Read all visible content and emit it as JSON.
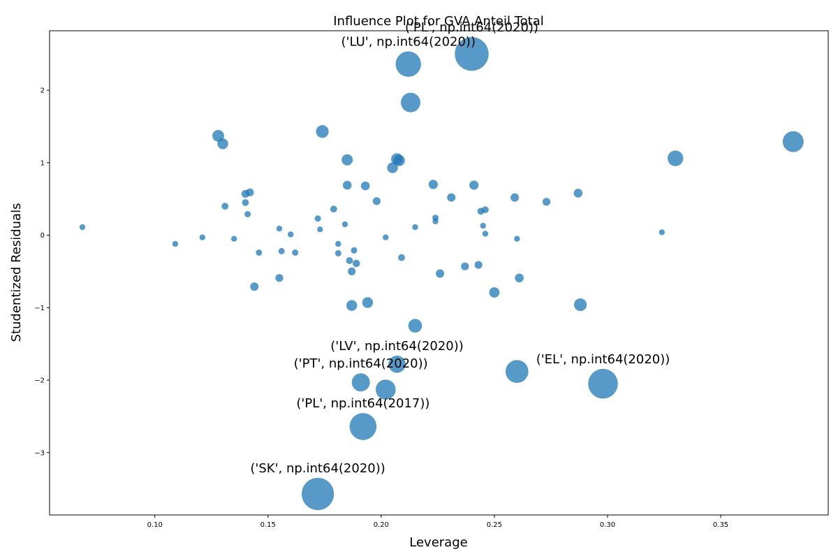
{
  "chart_data": {
    "type": "scatter",
    "title": "Influence Plot for GVA Anteil Total",
    "xlabel": "Leverage",
    "ylabel": "Studentized Residuals",
    "xlim": [
      0.0535,
      0.3975
    ],
    "ylim": [
      -3.86,
      2.82
    ],
    "grid": false,
    "marker_color": "#1f77b4",
    "xticks": [
      {
        "value": 0.1,
        "label": "0.10"
      },
      {
        "value": 0.15,
        "label": "0.15"
      },
      {
        "value": 0.2,
        "label": "0.20"
      },
      {
        "value": 0.25,
        "label": "0.25"
      },
      {
        "value": 0.3,
        "label": "0.30"
      },
      {
        "value": 0.35,
        "label": "0.35"
      }
    ],
    "yticks": [
      {
        "value": -3,
        "label": "−3"
      },
      {
        "value": -2,
        "label": "−2"
      },
      {
        "value": -1,
        "label": "−1"
      },
      {
        "value": 0,
        "label": "0"
      },
      {
        "value": 1,
        "label": "1"
      },
      {
        "value": 2,
        "label": "2"
      }
    ],
    "points": [
      {
        "x": 0.068,
        "y": 0.11,
        "size": 0.6
      },
      {
        "x": 0.109,
        "y": -0.12,
        "size": 0.6
      },
      {
        "x": 0.121,
        "y": -0.03,
        "size": 0.6
      },
      {
        "x": 0.128,
        "y": 1.37,
        "size": 1.2
      },
      {
        "x": 0.13,
        "y": 1.26,
        "size": 1.1
      },
      {
        "x": 0.131,
        "y": 0.4,
        "size": 0.7
      },
      {
        "x": 0.135,
        "y": -0.05,
        "size": 0.6
      },
      {
        "x": 0.14,
        "y": 0.57,
        "size": 0.8
      },
      {
        "x": 0.14,
        "y": 0.45,
        "size": 0.7
      },
      {
        "x": 0.141,
        "y": 0.29,
        "size": 0.65
      },
      {
        "x": 0.142,
        "y": 0.59,
        "size": 0.8
      },
      {
        "x": 0.144,
        "y": -0.71,
        "size": 0.85
      },
      {
        "x": 0.146,
        "y": -0.24,
        "size": 0.65
      },
      {
        "x": 0.155,
        "y": -0.59,
        "size": 0.8
      },
      {
        "x": 0.155,
        "y": 0.09,
        "size": 0.6
      },
      {
        "x": 0.156,
        "y": -0.22,
        "size": 0.65
      },
      {
        "x": 0.16,
        "y": 0.01,
        "size": 0.6
      },
      {
        "x": 0.162,
        "y": -0.24,
        "size": 0.65
      },
      {
        "x": 0.172,
        "y": -3.57,
        "size": 3.3
      },
      {
        "x": 0.172,
        "y": 0.23,
        "size": 0.65
      },
      {
        "x": 0.173,
        "y": 0.08,
        "size": 0.6
      },
      {
        "x": 0.174,
        "y": 1.43,
        "size": 1.3
      },
      {
        "x": 0.179,
        "y": 0.36,
        "size": 0.7
      },
      {
        "x": 0.181,
        "y": -0.12,
        "size": 0.6
      },
      {
        "x": 0.181,
        "y": -0.25,
        "size": 0.65
      },
      {
        "x": 0.184,
        "y": 0.15,
        "size": 0.6
      },
      {
        "x": 0.185,
        "y": 1.04,
        "size": 1.15
      },
      {
        "x": 0.185,
        "y": 0.69,
        "size": 0.9
      },
      {
        "x": 0.186,
        "y": -0.35,
        "size": 0.7
      },
      {
        "x": 0.187,
        "y": -0.5,
        "size": 0.8
      },
      {
        "x": 0.187,
        "y": -0.97,
        "size": 1.1
      },
      {
        "x": 0.188,
        "y": -0.21,
        "size": 0.65
      },
      {
        "x": 0.189,
        "y": -0.39,
        "size": 0.75
      },
      {
        "x": 0.191,
        "y": -2.03,
        "size": 1.85
      },
      {
        "x": 0.192,
        "y": -2.64,
        "size": 2.75
      },
      {
        "x": 0.193,
        "y": 0.68,
        "size": 0.9
      },
      {
        "x": 0.194,
        "y": -0.93,
        "size": 1.1
      },
      {
        "x": 0.198,
        "y": 0.47,
        "size": 0.8
      },
      {
        "x": 0.202,
        "y": -0.03,
        "size": 0.6
      },
      {
        "x": 0.202,
        "y": -2.13,
        "size": 2.05
      },
      {
        "x": 0.205,
        "y": 0.93,
        "size": 1.1
      },
      {
        "x": 0.207,
        "y": 1.05,
        "size": 1.2
      },
      {
        "x": 0.207,
        "y": -1.78,
        "size": 1.75
      },
      {
        "x": 0.208,
        "y": 1.03,
        "size": 1.15
      },
      {
        "x": 0.209,
        "y": -0.31,
        "size": 0.7
      },
      {
        "x": 0.212,
        "y": 2.36,
        "size": 2.6
      },
      {
        "x": 0.213,
        "y": 1.83,
        "size": 2.0
      },
      {
        "x": 0.215,
        "y": -1.25,
        "size": 1.4
      },
      {
        "x": 0.215,
        "y": 0.11,
        "size": 0.6
      },
      {
        "x": 0.223,
        "y": 0.7,
        "size": 0.95
      },
      {
        "x": 0.224,
        "y": 0.24,
        "size": 0.65
      },
      {
        "x": 0.224,
        "y": 0.19,
        "size": 0.6
      },
      {
        "x": 0.226,
        "y": -0.53,
        "size": 0.85
      },
      {
        "x": 0.231,
        "y": 0.52,
        "size": 0.85
      },
      {
        "x": 0.237,
        "y": -0.43,
        "size": 0.8
      },
      {
        "x": 0.24,
        "y": 2.5,
        "size": 3.45
      },
      {
        "x": 0.241,
        "y": 0.69,
        "size": 0.95
      },
      {
        "x": 0.243,
        "y": -0.41,
        "size": 0.8
      },
      {
        "x": 0.244,
        "y": 0.33,
        "size": 0.7
      },
      {
        "x": 0.245,
        "y": 0.13,
        "size": 0.6
      },
      {
        "x": 0.246,
        "y": 0.35,
        "size": 0.7
      },
      {
        "x": 0.246,
        "y": 0.02,
        "size": 0.6
      },
      {
        "x": 0.25,
        "y": -0.79,
        "size": 1.05
      },
      {
        "x": 0.259,
        "y": 0.52,
        "size": 0.85
      },
      {
        "x": 0.26,
        "y": -1.88,
        "size": 2.35
      },
      {
        "x": 0.26,
        "y": -0.05,
        "size": 0.6
      },
      {
        "x": 0.261,
        "y": -0.59,
        "size": 0.9
      },
      {
        "x": 0.273,
        "y": 0.46,
        "size": 0.8
      },
      {
        "x": 0.287,
        "y": 0.58,
        "size": 0.9
      },
      {
        "x": 0.288,
        "y": -0.96,
        "size": 1.3
      },
      {
        "x": 0.298,
        "y": -2.05,
        "size": 3.05
      },
      {
        "x": 0.324,
        "y": 0.04,
        "size": 0.6
      },
      {
        "x": 0.33,
        "y": 1.06,
        "size": 1.6
      },
      {
        "x": 0.382,
        "y": 1.29,
        "size": 2.15
      }
    ],
    "annotations": [
      {
        "text": "('PL', np.int64(2020))",
        "x": 0.24,
        "y": 2.5
      },
      {
        "text": "('LU', np.int64(2020))",
        "x": 0.212,
        "y": 2.36
      },
      {
        "text": "('PT', np.int64(2020))",
        "x": 0.191,
        "y": -2.03
      },
      {
        "text": "('LV', np.int64(2020))",
        "x": 0.207,
        "y": -1.78
      },
      {
        "text": "('EL', np.int64(2020))",
        "x": 0.298,
        "y": -2.05
      },
      {
        "text": "('PL', np.int64(2017))",
        "x": 0.192,
        "y": -2.64
      },
      {
        "text": "('SK', np.int64(2020))",
        "x": 0.172,
        "y": -3.57
      }
    ]
  }
}
